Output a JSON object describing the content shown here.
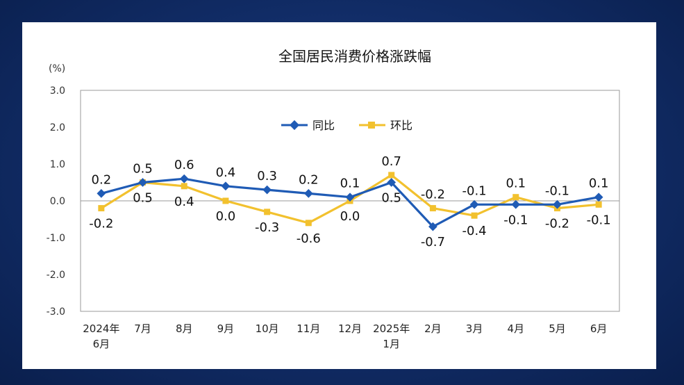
{
  "chart_data": {
    "type": "line",
    "title": "全国居民消费价格涨跌幅",
    "y_unit": "(%)",
    "ylim": [
      -3.0,
      3.0
    ],
    "yticks": [
      "3.0",
      "2.0",
      "1.0",
      "0.0",
      "-1.0",
      "-2.0",
      "-3.0"
    ],
    "categories": [
      [
        "2024年",
        "6月"
      ],
      [
        "7月"
      ],
      [
        "8月"
      ],
      [
        "9月"
      ],
      [
        "10月"
      ],
      [
        "11月"
      ],
      [
        "12月"
      ],
      [
        "2025年",
        "1月"
      ],
      [
        "2月"
      ],
      [
        "3月"
      ],
      [
        "4月"
      ],
      [
        "5月"
      ],
      [
        "6月"
      ]
    ],
    "legend_position": "top-center",
    "grid": false,
    "series": [
      {
        "name": "同比",
        "color": "#1f5bb5",
        "values": [
          0.2,
          0.5,
          0.6,
          0.4,
          0.3,
          0.2,
          0.1,
          0.5,
          -0.7,
          -0.1,
          -0.1,
          -0.1,
          0.1
        ],
        "labels": [
          "0.2",
          "0.5",
          "0.6",
          "0.4",
          "0.3",
          "0.2",
          "0.1",
          "0.5",
          "-0.7",
          "-0.1",
          "-0.1",
          "-0.1",
          "0.1"
        ]
      },
      {
        "name": "环比",
        "color": "#f2c12e",
        "values": [
          -0.2,
          0.5,
          0.4,
          0.0,
          -0.3,
          -0.6,
          0.0,
          0.7,
          -0.2,
          -0.4,
          0.1,
          -0.2,
          -0.1
        ],
        "labels": [
          "-0.2",
          "0.5",
          "0.4",
          "0.0",
          "-0.3",
          "-0.6",
          "0.0",
          "0.7",
          "-0.2",
          "-0.4",
          "0.1",
          "-0.2",
          "-0.1"
        ]
      }
    ]
  }
}
